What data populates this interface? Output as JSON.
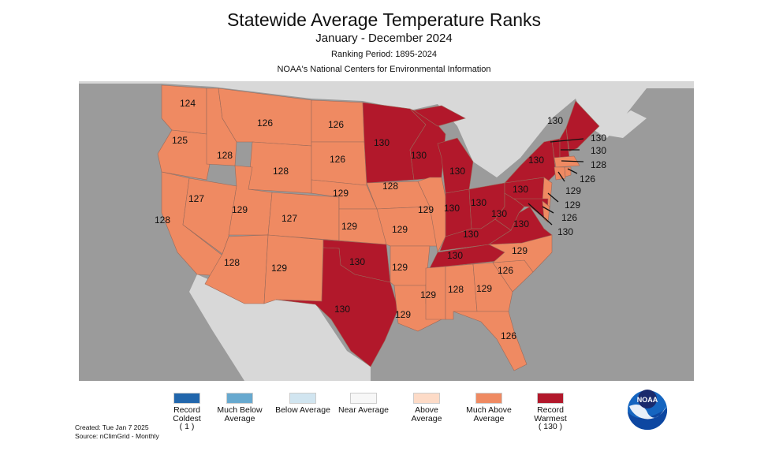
{
  "header": {
    "title": "Statewide Average Temperature Ranks",
    "period": "January - December 2024",
    "ranking_period": "Ranking Period: 1895-2024",
    "source_org": "NOAA's National Centers for Environmental Information"
  },
  "colors": {
    "ocean": "#9b9b9b",
    "land_foreign": "#d8d8d8",
    "record_coldest": "#2166ac",
    "much_below": "#67a9cf",
    "below": "#d1e5f0",
    "near": "#f7f7f7",
    "above": "#fddbc7",
    "much_above": "#ef8a62",
    "record_warmest": "#b2182b"
  },
  "states": {
    "WA": 124,
    "OR": 125,
    "CA": 128,
    "NV": 127,
    "ID": 128,
    "MT": 126,
    "WY": 128,
    "UT": 129,
    "AZ": 128,
    "CO": 127,
    "NM": 129,
    "ND": 126,
    "SD": 126,
    "NE": 129,
    "KS": 129,
    "OK": 130,
    "TX": 130,
    "MN": 130,
    "IA": 128,
    "MO": 129,
    "AR": 129,
    "LA": 129,
    "WI": 130,
    "IL": 129,
    "MI": 130,
    "IN": 130,
    "OH": 130,
    "KY": 130,
    "TN": 130,
    "MS": 129,
    "AL": 128,
    "GA": 129,
    "FL": 126,
    "SC": 126,
    "NC": 129,
    "VA": 130,
    "WV": 130,
    "PA": 130,
    "NY": 130,
    "NJ": 129,
    "DE": 126,
    "MD": 130,
    "CT": 129,
    "RI": 126,
    "MA": 128,
    "VT": 130,
    "NH": 130,
    "ME": 130
  },
  "legend": [
    {
      "label": "Record Coldest",
      "extra": "( 1 )",
      "color": "record_coldest"
    },
    {
      "label": "Much Below Average",
      "extra": "",
      "color": "much_below"
    },
    {
      "label": "Below Average",
      "extra": "",
      "color": "below"
    },
    {
      "label": "Near Average",
      "extra": "",
      "color": "near"
    },
    {
      "label": "Above Average",
      "extra": "",
      "color": "above"
    },
    {
      "label": "Much Above Average",
      "extra": "",
      "color": "much_above"
    },
    {
      "label": "Record Warmest",
      "extra": "( 130 )",
      "color": "record_warmest"
    }
  ],
  "footer": {
    "created": "Created: Tue Jan  7 2025",
    "source": "Source: nClimGrid - Monthly"
  },
  "logo": {
    "text": "NOAA"
  }
}
